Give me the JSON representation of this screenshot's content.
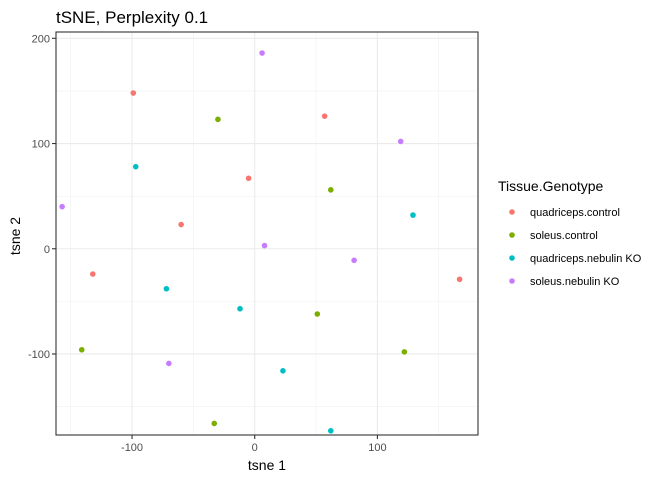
{
  "chart_data": {
    "type": "scatter",
    "title": "tSNE, Perplexity 0.1",
    "xlabel": "tsne 1",
    "ylabel": "tsne 2",
    "xlim": [
      -162,
      182
    ],
    "ylim": [
      -177,
      206
    ],
    "x_ticks": [
      -100,
      0,
      100
    ],
    "y_ticks": [
      -100,
      0,
      100,
      200
    ],
    "x_minor": [
      -150,
      -50,
      50,
      150
    ],
    "y_minor": [
      -150,
      -50,
      50,
      150
    ],
    "grid": true,
    "legend_title": "Tissue.Genotype",
    "legend_position": "right",
    "series": [
      {
        "name": "quadriceps.control",
        "color": "#F8766D",
        "points": [
          [
            -99,
            148
          ],
          [
            57,
            126
          ],
          [
            -5,
            67
          ],
          [
            -60,
            23
          ],
          [
            -132,
            -24
          ],
          [
            167,
            -29
          ]
        ]
      },
      {
        "name": "soleus.control",
        "color": "#7CAE00",
        "points": [
          [
            -30,
            123
          ],
          [
            62,
            56
          ],
          [
            51,
            -62
          ],
          [
            -141,
            -96
          ],
          [
            122,
            -98
          ],
          [
            -33,
            -166
          ]
        ]
      },
      {
        "name": "quadriceps.nebulin KO",
        "color": "#00BFC4",
        "points": [
          [
            -97,
            78
          ],
          [
            129,
            32
          ],
          [
            -72,
            -38
          ],
          [
            -12,
            -57
          ],
          [
            23,
            -116
          ],
          [
            62,
            -173
          ]
        ]
      },
      {
        "name": "soleus.nebulin KO",
        "color": "#C77CFF",
        "points": [
          [
            6,
            186
          ],
          [
            119,
            102
          ],
          [
            -157,
            40
          ],
          [
            8,
            3
          ],
          [
            81,
            -11
          ],
          [
            -70,
            -109
          ]
        ]
      }
    ]
  }
}
